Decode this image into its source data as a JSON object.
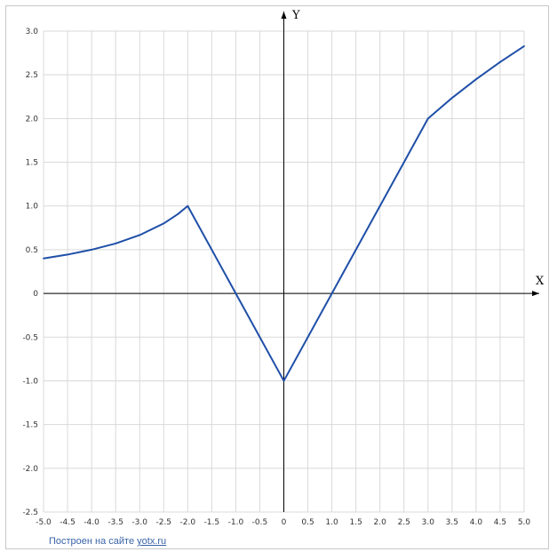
{
  "credit": {
    "prefix": "Построен на сайте ",
    "link": "yotx.ru"
  },
  "colors": {
    "curve": "#1f4fa8",
    "grid": "#d9d9d9",
    "axis": "#000000",
    "frame": "#c8c8c8"
  },
  "chart_data": {
    "type": "line",
    "title": "",
    "xlabel": "X",
    "ylabel": "Y",
    "xlim": [
      -5,
      5
    ],
    "ylim": [
      -2.5,
      3
    ],
    "grid": true,
    "x_ticks": [
      "-5.0",
      "-4.5",
      "-4.0",
      "-3.5",
      "-3.0",
      "-2.5",
      "-2.0",
      "-1.5",
      "-1.0",
      "-0.5",
      "0",
      "0.5",
      "1.0",
      "1.5",
      "2.0",
      "2.5",
      "3.0",
      "3.5",
      "4.0",
      "4.5",
      "5.0"
    ],
    "y_ticks": [
      "3.0",
      "2.5",
      "2.0",
      "1.5",
      "1.0",
      "0.5",
      "0",
      "-0.5",
      "-1.0",
      "-1.5",
      "-2.0",
      "-2.5"
    ],
    "series": [
      {
        "x": [
          -5.0,
          -4.5,
          -4.0,
          -3.5,
          -3.0,
          -2.5,
          -2.2,
          -2.0,
          -1.0,
          0.0,
          1.0,
          2.0,
          3.0,
          3.5,
          4.0,
          4.5,
          5.0
        ],
        "y": [
          0.4,
          0.444,
          0.5,
          0.571,
          0.667,
          0.8,
          0.909,
          1.0,
          0.0,
          -1.0,
          0.0,
          1.0,
          2.0,
          2.236,
          2.449,
          2.646,
          2.828
        ]
      }
    ]
  }
}
